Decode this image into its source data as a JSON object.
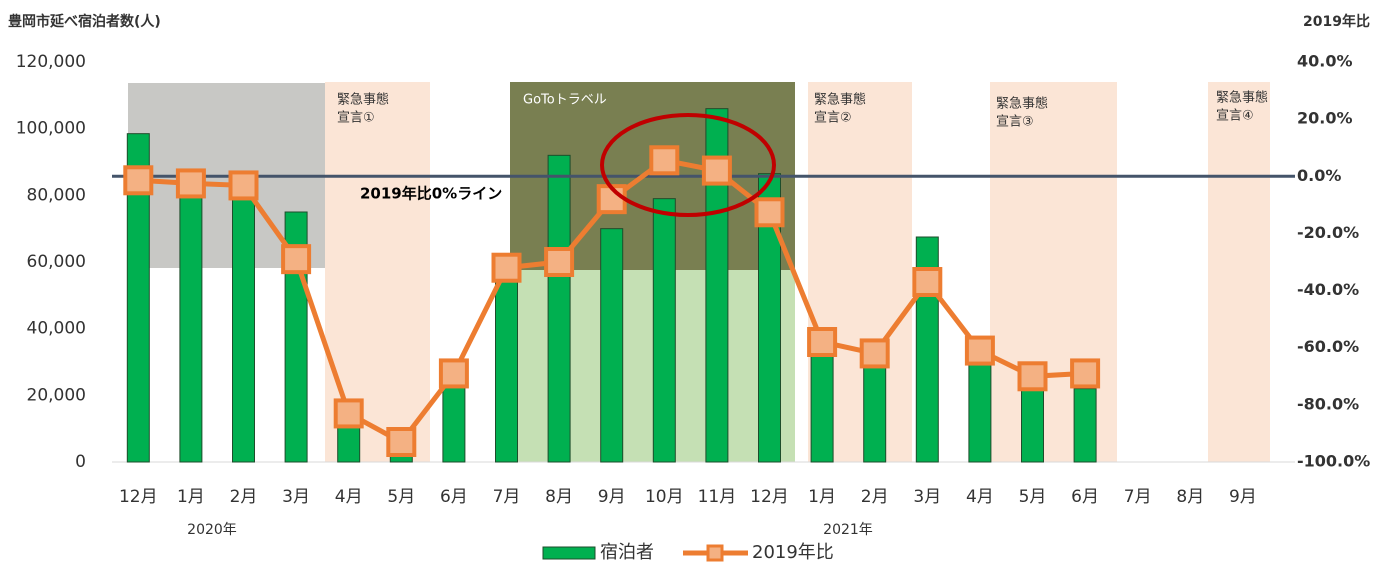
{
  "chart_data": {
    "type": "bar-line",
    "y_title": "豊岡市延べ宿泊者数(人)",
    "y2_title": "2019年比",
    "categories": [
      "12月",
      "1月",
      "2月",
      "3月",
      "4月",
      "5月",
      "6月",
      "7月",
      "8月",
      "9月",
      "10月",
      "11月",
      "12月",
      "1月",
      "2月",
      "3月",
      "4月",
      "5月",
      "6月",
      "7月",
      "8月",
      "9月"
    ],
    "year_labels": [
      "2020年",
      "2021年"
    ],
    "series": [
      {
        "name": "宿泊者",
        "type": "bar",
        "color": "#00b050",
        "values": [
          98500,
          85000,
          82000,
          75000,
          12000,
          6000,
          25000,
          55000,
          92000,
          70000,
          79000,
          106000,
          86500,
          37000,
          30000,
          67500,
          33000,
          24000,
          22000,
          null,
          null,
          null
        ]
      },
      {
        "name": "2019年比",
        "type": "line",
        "axis": "y2",
        "color": "#ed7d31",
        "values": [
          -1.4,
          -2.5,
          -3.2,
          -29,
          -83,
          -93,
          -69,
          -32,
          -30,
          -8,
          5.6,
          2,
          -12.6,
          -58,
          -62,
          -37,
          -61,
          -70,
          -69,
          null,
          null,
          null
        ]
      }
    ],
    "ylim": [
      0,
      120000
    ],
    "yticks": [
      0,
      {
        "value": 20000,
        "label": "20,000"
      },
      {
        "value": 40000,
        "label": "40,000"
      },
      {
        "value": 60000,
        "label": "60,000"
      },
      {
        "value": 80000,
        "label": "80,000"
      },
      {
        "value": 100000,
        "label": "100,000"
      },
      {
        "value": 120000,
        "label": "120,000"
      }
    ],
    "y2lim": [
      -100,
      40
    ],
    "y2ticks": [
      {
        "value": -100,
        "label": "-100.0%"
      },
      {
        "value": -80,
        "label": "-80.0%"
      },
      {
        "value": -60,
        "label": "-60.0%"
      },
      {
        "value": -40,
        "label": "-40.0%"
      },
      {
        "value": -20,
        "label": "-20.0%"
      },
      {
        "value": 0,
        "label": "0.0%"
      },
      {
        "value": 20,
        "label": "20.0%"
      },
      {
        "value": 40,
        "label": "40.0%"
      }
    ],
    "reference_line": {
      "value": 0,
      "label": "2019年比0%ライン",
      "color": "#44546a"
    },
    "emergency_labels": [
      [
        "緊急事態",
        "宣言①"
      ],
      [
        "緊急事態",
        "宣言②"
      ],
      [
        "緊急事態",
        "宣言③"
      ],
      [
        "緊急事態",
        "宣言④"
      ]
    ],
    "goto_label": "GoToトラベル"
  }
}
